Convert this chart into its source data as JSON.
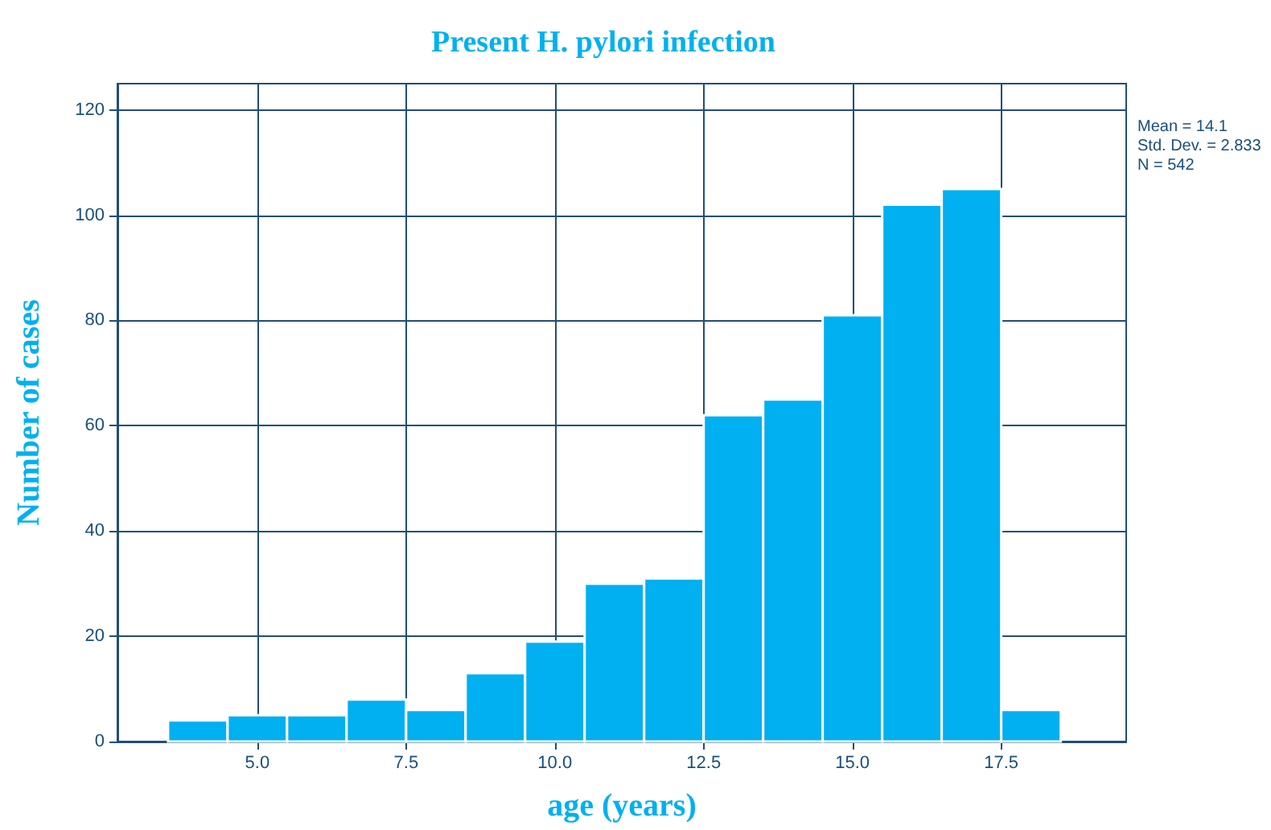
{
  "chart_data": {
    "type": "histogram",
    "title": "Present H. pylori infection",
    "xlabel": "age (years)",
    "ylabel": "Number of cases",
    "bins": [
      3.5,
      4.5,
      5.5,
      6.5,
      7.5,
      8.5,
      9.5,
      10.5,
      11.5,
      12.5,
      13.5,
      14.5,
      15.5,
      16.5,
      17.5,
      18.5
    ],
    "values": [
      4,
      5,
      5,
      8,
      6,
      13,
      19,
      30,
      31,
      62,
      65,
      81,
      102,
      105,
      6
    ],
    "color": "#00b0f0",
    "xlim": [
      2.65,
      19.6
    ],
    "xticks": [
      {
        "value": 5,
        "label": "5.0"
      },
      {
        "value": 7.5,
        "label": "7.5"
      },
      {
        "value": 10,
        "label": "10.0"
      },
      {
        "value": 12.5,
        "label": "12.5"
      },
      {
        "value": 15,
        "label": "15.0"
      },
      {
        "value": 17.5,
        "label": "17.5"
      }
    ],
    "ylim": [
      0,
      125
    ],
    "yticks": [
      0,
      20,
      40,
      60,
      80,
      100,
      120
    ],
    "grid": true,
    "annotations": [
      "Mean = 14.1",
      "Std. Dev. = 2.833",
      "N = 542"
    ]
  }
}
